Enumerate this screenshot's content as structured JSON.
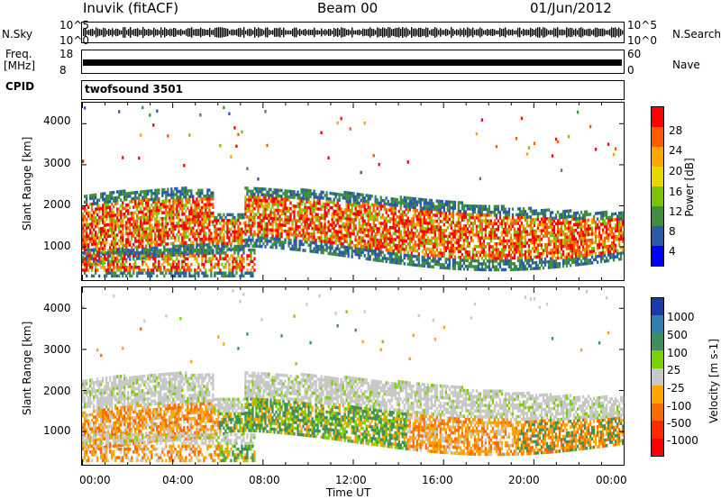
{
  "header": {
    "station": "Inuvik (fitACF)",
    "beam": "Beam 00",
    "date": "01/Jun/2012"
  },
  "strip": {
    "nsky_label": "N.Sky",
    "nsky_ticks": [
      "10^5",
      "10^0"
    ],
    "nsearch_label": "N.Search",
    "nsearch_ticks": [
      "10^5",
      "10^0"
    ],
    "freq_label_line1": "Freq.",
    "freq_label_line2": "[MHz]",
    "freq_ticks": [
      "18",
      "8"
    ],
    "nave_label": "Nave",
    "nave_ticks": [
      "60",
      "0"
    ],
    "cpid_label": "CPID",
    "cpid_value": "twofsound 3501"
  },
  "chart_data": [
    {
      "type": "heatmap",
      "title": "",
      "ylabel": "Slant Range [km]",
      "ylim": [
        180,
        4500
      ],
      "yticks": [
        "4000",
        "3000",
        "2000",
        "1000"
      ],
      "xlabel": "",
      "colorbar": {
        "label": "Power [dB]",
        "ticks": [
          "28",
          "24",
          "20",
          "16",
          "12",
          "8",
          "4"
        ],
        "colors": [
          "#ff0000",
          "#ff5a00",
          "#ffa500",
          "#e6d700",
          "#7cc300",
          "#3f8f3f",
          "#2b5aa8",
          "#0000ff"
        ]
      }
    },
    {
      "type": "heatmap",
      "title": "",
      "ylabel": "Slant Range [km]",
      "ylim": [
        180,
        4500
      ],
      "yticks": [
        "4000",
        "3000",
        "2000",
        "1000"
      ],
      "xlabel": "Time UT",
      "xticks": [
        "00:00",
        "04:00",
        "08:00",
        "12:00",
        "16:00",
        "20:00",
        "00:00"
      ],
      "colorbar": {
        "label": "Velocity [m s-1]",
        "ticks": [
          "1000",
          "500",
          "100",
          "25",
          "-25",
          "-100",
          "-500",
          "-1000"
        ],
        "colors": [
          "#1a3aa8",
          "#2f7fb0",
          "#3f8f5a",
          "#7cd000",
          "#c8c8c8",
          "#ffa500",
          "#ff6a00",
          "#ff2a00",
          "#ff0000"
        ]
      }
    }
  ]
}
